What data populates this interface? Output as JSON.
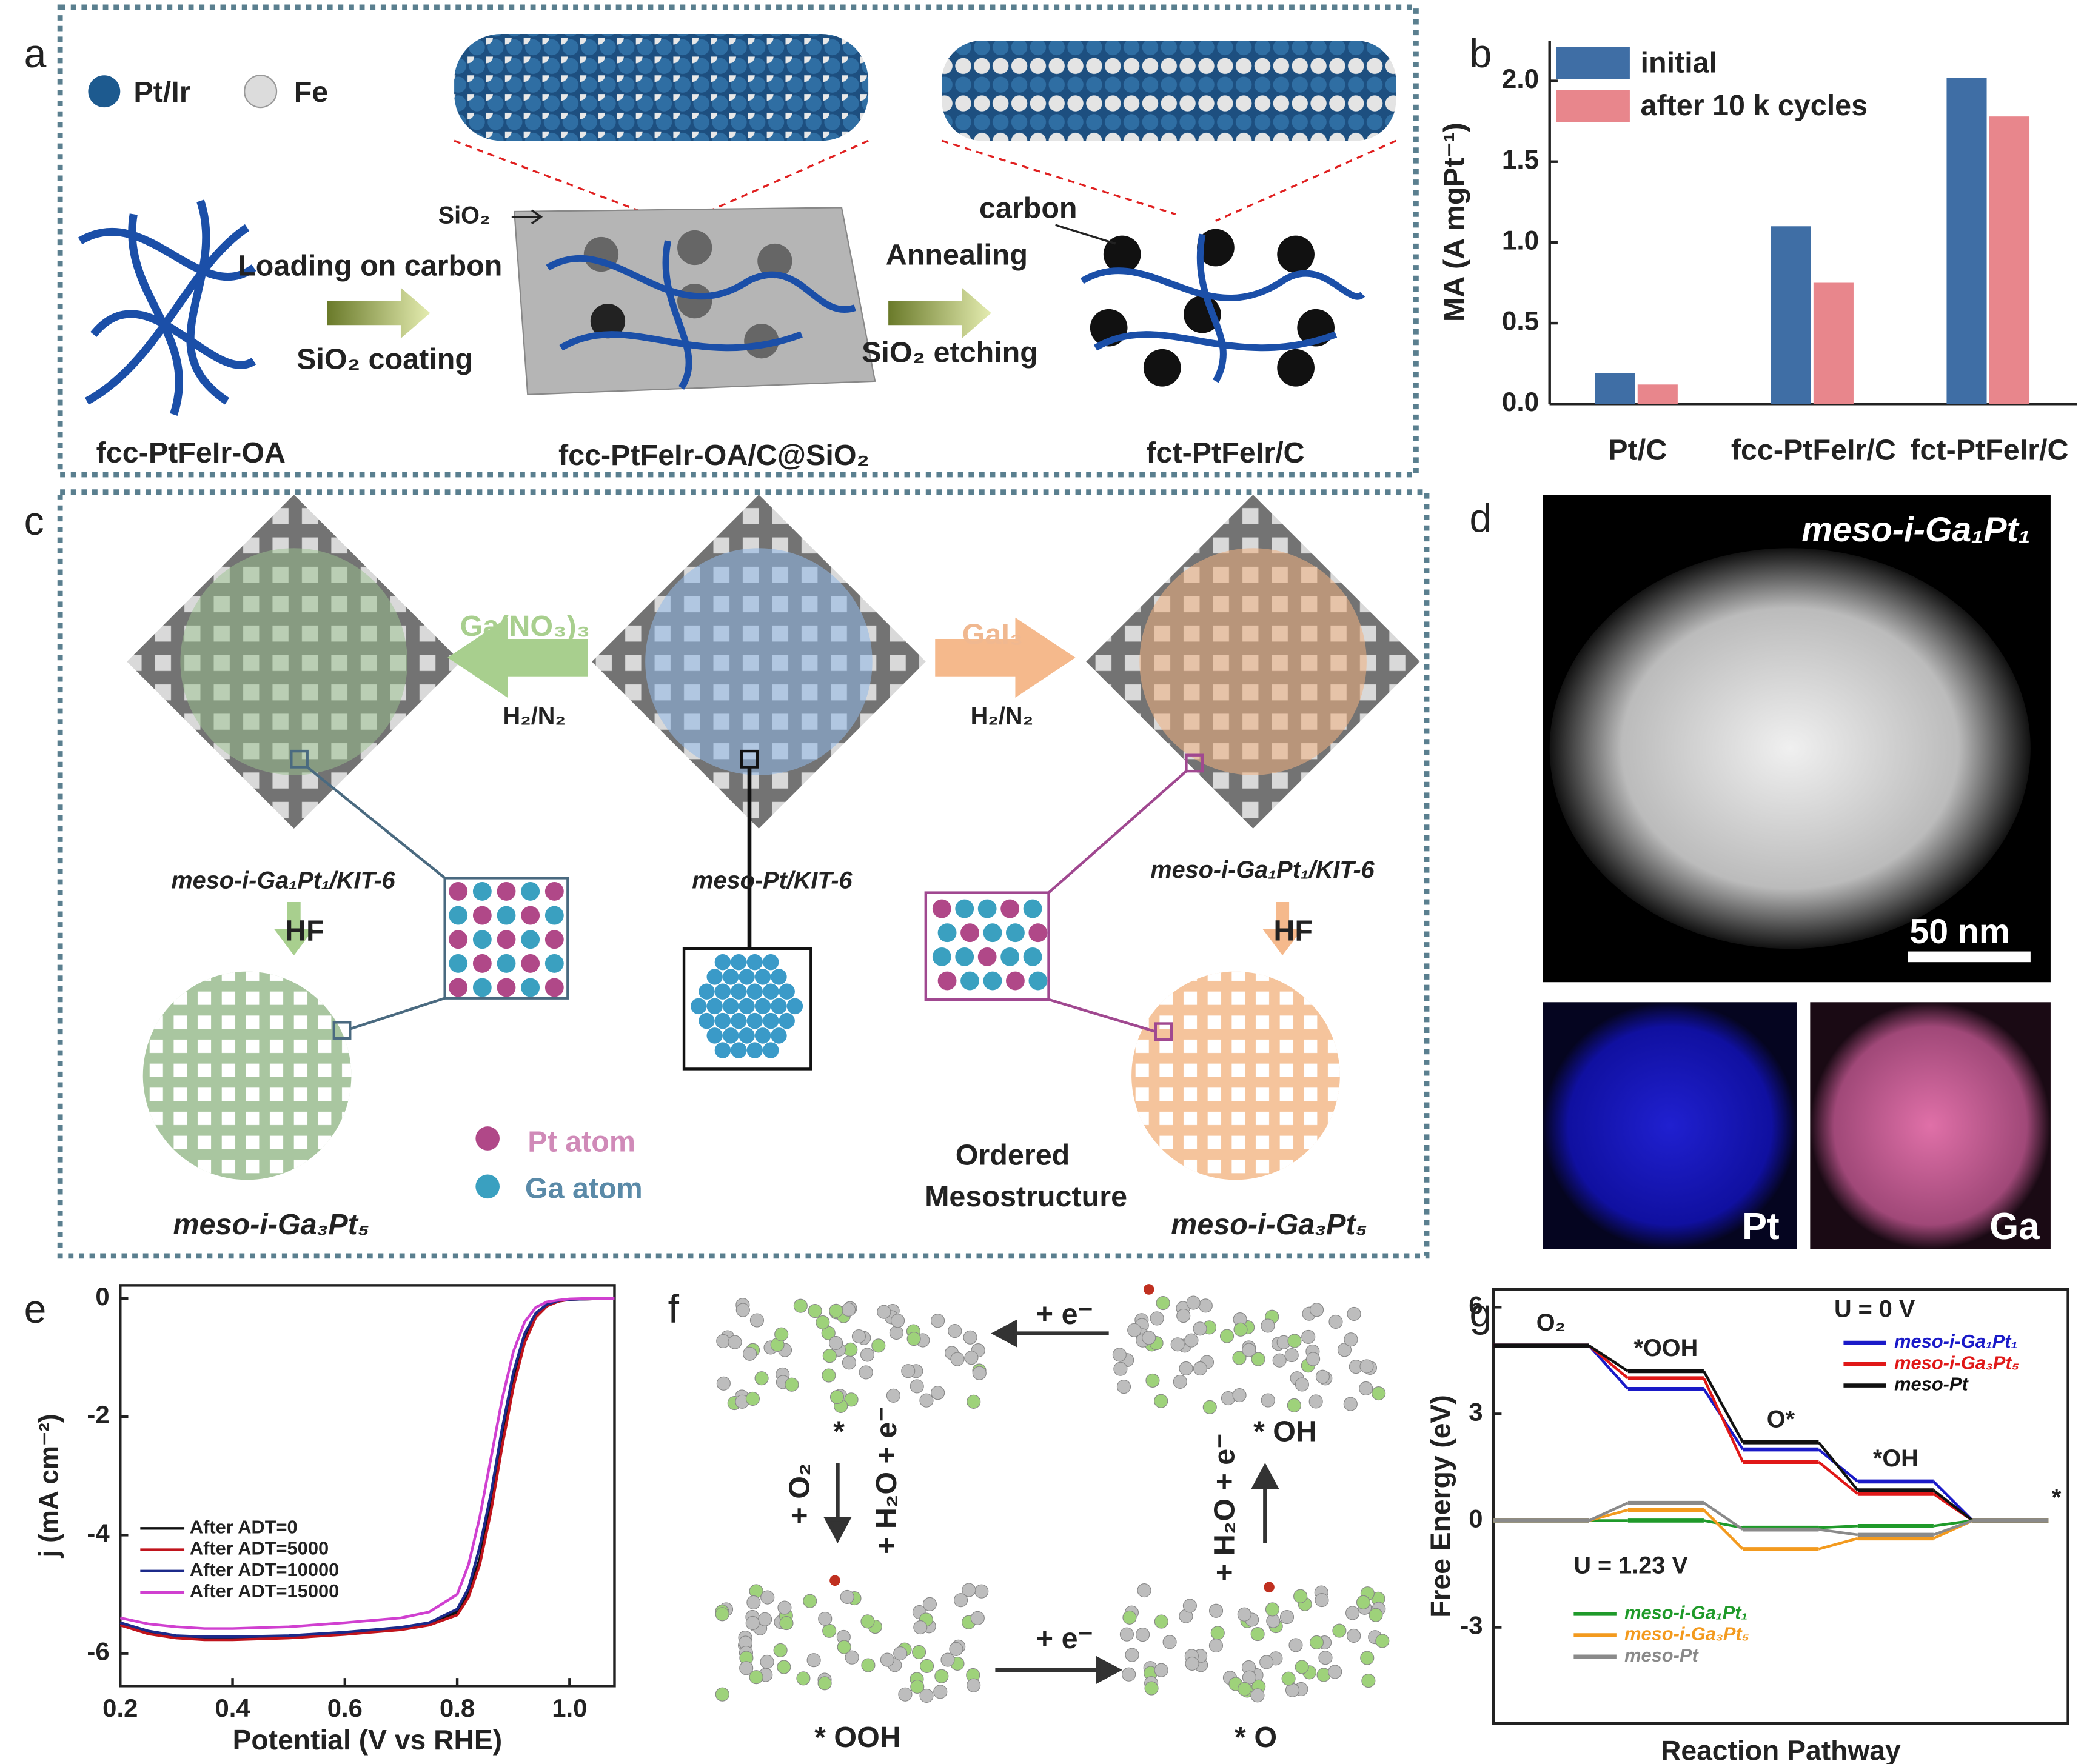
{
  "panels": {
    "a": {
      "label": "a",
      "legend": [
        "Pt/Ir",
        "Fe"
      ],
      "sio2": "SiO₂",
      "step1_top": "Loading on carbon",
      "step1_bottom": "SiO₂ coating",
      "carbon": "carbon",
      "step2_top": "Annealing",
      "step2_bottom": "SiO₂ etching",
      "names": [
        "fcc-PtFeIr-OA",
        "fcc-PtFeIr-OA/C@SiO₂",
        "fct-PtFeIr/C"
      ]
    },
    "c": {
      "label": "c",
      "left_reagent": "Ga(NO₃)₃",
      "left_gas": "H₂/N₂",
      "right_reagent": "GaI₃",
      "right_gas": "H₂/N₂",
      "names": [
        "meso-i-Ga₁Pt₁/KIT-6",
        "meso-Pt/KIT-6",
        "meso-i-Ga₁Pt₁/KIT-6"
      ],
      "etch": [
        "HF",
        "HF"
      ],
      "products": [
        "meso-i-Ga₃Pt₅",
        "meso-i-Ga₃Pt₅"
      ],
      "atoms": [
        "Pt atom",
        "Ga atom"
      ],
      "note": [
        "Ordered",
        "Mesostructure"
      ]
    },
    "d": {
      "label": "d",
      "title": "meso-i-Ga₁Pt₁",
      "scale": "50 nm",
      "maps": [
        "Pt",
        "Ga"
      ]
    },
    "f": {
      "label": "f",
      "top": "+ e⁻",
      "right_state": "* OH",
      "left_step": "+ O₂",
      "star": "*",
      "left_step2": "+ H₂O + e⁻",
      "right_step": "+ H₂O + e⁻",
      "bottom": "+ e⁻",
      "states": [
        "* OOH",
        "* O"
      ]
    }
  },
  "chart_data": [
    {
      "type": "bar",
      "panel_label": "b",
      "categories": [
        "Pt/C",
        "fcc-PtFeIr/C",
        "fct-PtFeIr/C"
      ],
      "series": [
        {
          "name": "initial",
          "color": "#3f6ea5",
          "values": [
            0.19,
            1.1,
            2.02
          ]
        },
        {
          "name": "after 10 k cycles",
          "color": "#e8868c",
          "values": [
            0.12,
            0.75,
            1.78
          ]
        }
      ],
      "y_label": "MA (A mgPt⁻¹)",
      "ylim": [
        0,
        2.25
      ],
      "yticks": [
        {
          "value": 0,
          "label": "0.0"
        },
        0.5,
        {
          "value": 1,
          "label": "1.0"
        },
        1.5,
        {
          "value": 2,
          "label": "2.0"
        }
      ]
    },
    {
      "type": "line",
      "panel_label": "e",
      "x": [
        0.2,
        0.25,
        0.3,
        0.35,
        0.4,
        0.5,
        0.6,
        0.7,
        0.75,
        0.8,
        0.82,
        0.84,
        0.86,
        0.88,
        0.9,
        0.92,
        0.94,
        0.96,
        0.98,
        1.0,
        1.04,
        1.08
      ],
      "series": [
        {
          "name": "After ADT=0",
          "color": "#111111",
          "values": [
            -5.5,
            -5.65,
            -5.72,
            -5.75,
            -5.75,
            -5.72,
            -5.66,
            -5.58,
            -5.5,
            -5.3,
            -5.0,
            -4.4,
            -3.5,
            -2.4,
            -1.4,
            -0.7,
            -0.3,
            -0.12,
            -0.05,
            -0.02,
            -0.01,
            0
          ]
        },
        {
          "name": "After ADT=5000",
          "color": "#c0141c",
          "values": [
            -5.52,
            -5.67,
            -5.74,
            -5.77,
            -5.77,
            -5.74,
            -5.68,
            -5.6,
            -5.52,
            -5.35,
            -5.05,
            -4.5,
            -3.6,
            -2.5,
            -1.5,
            -0.75,
            -0.32,
            -0.13,
            -0.05,
            -0.02,
            -0.01,
            0
          ]
        },
        {
          "name": "After ADT=10000",
          "color": "#1c2a8a",
          "values": [
            -5.48,
            -5.62,
            -5.7,
            -5.72,
            -5.72,
            -5.7,
            -5.64,
            -5.56,
            -5.48,
            -5.25,
            -4.9,
            -4.2,
            -3.3,
            -2.2,
            -1.25,
            -0.6,
            -0.25,
            -0.1,
            -0.04,
            -0.02,
            -0.01,
            0
          ]
        },
        {
          "name": "After ADT=15000",
          "color": "#d040d0",
          "values": [
            -5.4,
            -5.5,
            -5.55,
            -5.58,
            -5.58,
            -5.55,
            -5.48,
            -5.4,
            -5.3,
            -5.0,
            -4.5,
            -3.7,
            -2.7,
            -1.7,
            -0.9,
            -0.4,
            -0.15,
            -0.06,
            -0.03,
            -0.01,
            0,
            0
          ]
        }
      ],
      "x_label": "Potential (V vs RHE)",
      "y_label": "j (mA cm⁻²)",
      "xlim": [
        0.2,
        1.08
      ],
      "xticks": [
        0.2,
        0.4,
        0.6,
        0.8,
        {
          "value": 1,
          "label": "1.0"
        }
      ],
      "ylim": [
        -6.55,
        0.22
      ],
      "yticks": [
        0,
        -2,
        -4,
        -6
      ]
    },
    {
      "type": "step",
      "panel_label": "g",
      "categories": [
        "O₂",
        "*OOH",
        "O*",
        "*OH",
        "*"
      ],
      "series": [
        {
          "name": "meso-i-Ga₁Pt₁",
          "color": "#1a1ac8",
          "values": [
            4.92,
            3.7,
            2.0,
            1.1,
            0
          ]
        },
        {
          "name": "meso-i-Ga₃Pt₅",
          "color": "#e01818",
          "values": [
            4.92,
            4.0,
            1.65,
            0.75,
            0
          ]
        },
        {
          "name": "meso-Pt",
          "color": "#111111",
          "values": [
            4.92,
            4.2,
            2.2,
            0.85,
            0
          ]
        },
        {
          "name": "meso-i-Ga₁Pt₁",
          "color": "#1f9a2a",
          "values": [
            0,
            0,
            -0.2,
            -0.15,
            0
          ]
        },
        {
          "name": "meso-i-Ga₃Pt₅",
          "color": "#f39a1e",
          "values": [
            0,
            0.3,
            -0.8,
            -0.5,
            0
          ]
        },
        {
          "name": "meso-Pt",
          "color": "#8a8a8a",
          "values": [
            0,
            0.5,
            -0.25,
            -0.4,
            0
          ]
        }
      ],
      "legend_titles": [
        "U = 0 V",
        "U = 1.23 V"
      ],
      "x_label": "Reaction Pathway",
      "y_label": "Free Energy (eV)",
      "ylim": [
        -5.7,
        6.5
      ],
      "yticks": [
        6,
        3,
        0,
        -3
      ]
    }
  ]
}
